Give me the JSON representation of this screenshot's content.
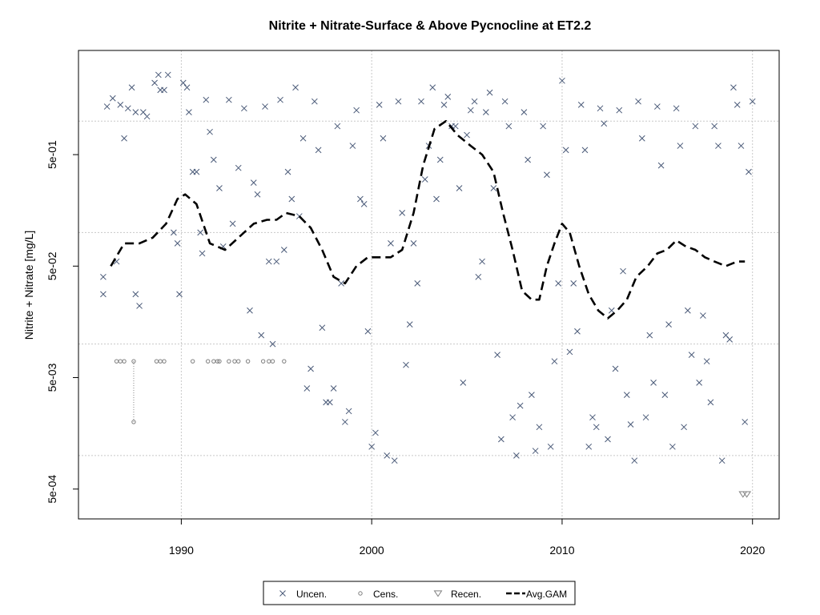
{
  "chart_data": {
    "type": "scatter",
    "title": "Nitrite + Nitrate-Surface & Above Pycnocline at ET2.2",
    "xlabel": "",
    "ylabel": "Nitrite + Nitrate [mg/L]",
    "x_scale": "linear",
    "y_scale": "log",
    "xlim": [
      1984.6,
      2021.4
    ],
    "ylim": [
      0.00027,
      4.3
    ],
    "x_ticks": [
      1990,
      2000,
      2010,
      2020
    ],
    "x_tick_labels": [
      "1990",
      "2000",
      "2010",
      "2020"
    ],
    "y_ticks": [
      0.0005,
      0.005,
      0.05,
      0.5
    ],
    "y_tick_labels": [
      "5e-04",
      "5e-03",
      "5e-02",
      "5e-01"
    ],
    "y_gridlines": [
      0.001,
      0.01,
      0.1,
      1
    ],
    "x_gridlines": [
      1990,
      2000,
      2010,
      2020
    ],
    "grid": true,
    "legend_position": "bottom-center",
    "legend": [
      "Uncen.",
      "Cens.",
      "Recen.",
      "Avg.GAM"
    ],
    "colors": {
      "uncensored": "#4a5a78",
      "censored": "#7f7f7f",
      "recensored": "#7f7f7f",
      "gam": "#000000",
      "grid": "#c8c8c8"
    },
    "series": [
      {
        "name": "Uncen.",
        "marker": "x",
        "points": [
          [
            1985.9,
            0.04
          ],
          [
            1985.9,
            0.028
          ],
          [
            1986.1,
            1.35
          ],
          [
            1986.4,
            1.6
          ],
          [
            1986.6,
            0.055
          ],
          [
            1986.8,
            1.4
          ],
          [
            1987.0,
            0.7
          ],
          [
            1987.2,
            1.3
          ],
          [
            1987.4,
            2.0
          ],
          [
            1987.6,
            1.2
          ],
          [
            1987.6,
            0.028
          ],
          [
            1987.8,
            0.022
          ],
          [
            1988.0,
            1.2
          ],
          [
            1988.2,
            1.1
          ],
          [
            1988.6,
            2.2
          ],
          [
            1988.8,
            2.6
          ],
          [
            1988.9,
            1.9
          ],
          [
            1989.1,
            1.9
          ],
          [
            1989.3,
            2.6
          ],
          [
            1989.6,
            0.1
          ],
          [
            1989.8,
            0.08
          ],
          [
            1989.9,
            0.028
          ],
          [
            1990.1,
            2.2
          ],
          [
            1990.3,
            2.0
          ],
          [
            1990.4,
            1.2
          ],
          [
            1990.6,
            0.35
          ],
          [
            1990.8,
            0.35
          ],
          [
            1991.0,
            0.1
          ],
          [
            1991.1,
            0.065
          ],
          [
            1991.3,
            1.55
          ],
          [
            1991.5,
            0.8
          ],
          [
            1991.7,
            0.45
          ],
          [
            1992.0,
            0.25
          ],
          [
            1992.2,
            0.075
          ],
          [
            1992.5,
            1.55
          ],
          [
            1992.7,
            0.12
          ],
          [
            1993.0,
            0.38
          ],
          [
            1993.3,
            1.3
          ],
          [
            1993.6,
            0.02
          ],
          [
            1993.8,
            0.28
          ],
          [
            1994.0,
            0.22
          ],
          [
            1994.2,
            0.012
          ],
          [
            1994.4,
            1.35
          ],
          [
            1994.6,
            0.055
          ],
          [
            1994.8,
            0.01
          ],
          [
            1995.0,
            0.055
          ],
          [
            1995.2,
            1.55
          ],
          [
            1995.4,
            0.07
          ],
          [
            1995.6,
            0.35
          ],
          [
            1995.8,
            0.2
          ],
          [
            1996.0,
            2.0
          ],
          [
            1996.2,
            0.14
          ],
          [
            1996.4,
            0.7
          ],
          [
            1996.6,
            0.004
          ],
          [
            1996.8,
            0.006
          ],
          [
            1997.0,
            1.5
          ],
          [
            1997.2,
            0.55
          ],
          [
            1997.4,
            0.014
          ],
          [
            1997.6,
            0.003
          ],
          [
            1997.8,
            0.003
          ],
          [
            1998.0,
            0.004
          ],
          [
            1998.2,
            0.9
          ],
          [
            1998.4,
            0.035
          ],
          [
            1998.6,
            0.002
          ],
          [
            1998.8,
            0.0025
          ],
          [
            1999.0,
            0.6
          ],
          [
            1999.2,
            1.25
          ],
          [
            1999.4,
            0.2
          ],
          [
            1999.6,
            0.18
          ],
          [
            1999.8,
            0.013
          ],
          [
            2000.0,
            0.0012
          ],
          [
            2000.2,
            0.0016
          ],
          [
            2000.4,
            1.4
          ],
          [
            2000.6,
            0.7
          ],
          [
            2000.8,
            0.001
          ],
          [
            2001.0,
            0.08
          ],
          [
            2001.2,
            0.0009
          ],
          [
            2001.4,
            1.5
          ],
          [
            2001.6,
            0.15
          ],
          [
            2001.8,
            0.0065
          ],
          [
            2002.0,
            0.015
          ],
          [
            2002.2,
            0.08
          ],
          [
            2002.4,
            0.035
          ],
          [
            2002.6,
            1.5
          ],
          [
            2002.8,
            0.3
          ],
          [
            2003.0,
            0.6
          ],
          [
            2003.2,
            2.0
          ],
          [
            2003.4,
            0.2
          ],
          [
            2003.6,
            0.45
          ],
          [
            2003.8,
            1.4
          ],
          [
            2004.0,
            1.65
          ],
          [
            2004.2,
            0.9
          ],
          [
            2004.4,
            0.9
          ],
          [
            2004.6,
            0.25
          ],
          [
            2004.8,
            0.0045
          ],
          [
            2005.0,
            0.75
          ],
          [
            2005.2,
            1.25
          ],
          [
            2005.4,
            1.5
          ],
          [
            2005.6,
            0.04
          ],
          [
            2005.8,
            0.055
          ],
          [
            2006.0,
            1.2
          ],
          [
            2006.2,
            1.8
          ],
          [
            2006.4,
            0.25
          ],
          [
            2006.6,
            0.008
          ],
          [
            2006.8,
            0.0014
          ],
          [
            2007.0,
            1.5
          ],
          [
            2007.2,
            0.9
          ],
          [
            2007.4,
            0.0022
          ],
          [
            2007.6,
            0.001
          ],
          [
            2007.8,
            0.0028
          ],
          [
            2008.0,
            1.2
          ],
          [
            2008.2,
            0.45
          ],
          [
            2008.4,
            0.0035
          ],
          [
            2008.6,
            0.0011
          ],
          [
            2008.8,
            0.0018
          ],
          [
            2009.0,
            0.9
          ],
          [
            2009.2,
            0.33
          ],
          [
            2009.4,
            0.0012
          ],
          [
            2009.6,
            0.007
          ],
          [
            2009.8,
            0.035
          ],
          [
            2010.0,
            2.3
          ],
          [
            2010.2,
            0.55
          ],
          [
            2010.4,
            0.0085
          ],
          [
            2010.6,
            0.035
          ],
          [
            2010.8,
            0.013
          ],
          [
            2011.0,
            1.4
          ],
          [
            2011.2,
            0.55
          ],
          [
            2011.4,
            0.0012
          ],
          [
            2011.6,
            0.0022
          ],
          [
            2011.8,
            0.0018
          ],
          [
            2012.0,
            1.3
          ],
          [
            2012.2,
            0.95
          ],
          [
            2012.4,
            0.0014
          ],
          [
            2012.6,
            0.02
          ],
          [
            2012.8,
            0.006
          ],
          [
            2013.0,
            1.25
          ],
          [
            2013.2,
            0.045
          ],
          [
            2013.4,
            0.0035
          ],
          [
            2013.6,
            0.0019
          ],
          [
            2013.8,
            0.0009
          ],
          [
            2014.0,
            1.5
          ],
          [
            2014.2,
            0.7
          ],
          [
            2014.4,
            0.0022
          ],
          [
            2014.6,
            0.012
          ],
          [
            2014.8,
            0.0045
          ],
          [
            2015.0,
            1.35
          ],
          [
            2015.2,
            0.4
          ],
          [
            2015.4,
            0.0035
          ],
          [
            2015.6,
            0.015
          ],
          [
            2015.8,
            0.0012
          ],
          [
            2016.0,
            1.3
          ],
          [
            2016.2,
            0.6
          ],
          [
            2016.4,
            0.0018
          ],
          [
            2016.6,
            0.02
          ],
          [
            2016.8,
            0.008
          ],
          [
            2017.0,
            0.9
          ],
          [
            2017.2,
            0.0045
          ],
          [
            2017.4,
            0.018
          ],
          [
            2017.6,
            0.007
          ],
          [
            2017.8,
            0.003
          ],
          [
            2018.0,
            0.9
          ],
          [
            2018.2,
            0.6
          ],
          [
            2018.4,
            0.0009
          ],
          [
            2018.6,
            0.012
          ],
          [
            2018.8,
            0.011
          ],
          [
            2019.0,
            2.0
          ],
          [
            2019.2,
            1.4
          ],
          [
            2019.4,
            0.6
          ],
          [
            2019.6,
            0.002
          ],
          [
            2019.8,
            0.35
          ],
          [
            2020.0,
            1.5
          ]
        ]
      },
      {
        "name": "Cens.",
        "marker": "circle",
        "points": [
          [
            1986.6,
            0.007
          ],
          [
            1986.8,
            0.007
          ],
          [
            1987.0,
            0.007
          ],
          [
            1987.5,
            0.007
          ],
          [
            1987.5,
            0.002
          ],
          [
            1988.7,
            0.007
          ],
          [
            1988.9,
            0.007
          ],
          [
            1989.1,
            0.007
          ],
          [
            1990.6,
            0.007
          ],
          [
            1991.4,
            0.007
          ],
          [
            1991.7,
            0.007
          ],
          [
            1991.9,
            0.007
          ],
          [
            1992.0,
            0.007
          ],
          [
            1992.5,
            0.007
          ],
          [
            1992.8,
            0.007
          ],
          [
            1993.0,
            0.007
          ],
          [
            1993.5,
            0.007
          ],
          [
            1994.3,
            0.007
          ],
          [
            1994.6,
            0.007
          ],
          [
            1994.8,
            0.007
          ],
          [
            1995.4,
            0.007
          ]
        ]
      },
      {
        "name": "Recen.",
        "marker": "triangle-down",
        "points": [
          [
            2019.5,
            0.00045
          ],
          [
            2019.7,
            0.00045
          ]
        ]
      },
      {
        "name": "Avg.GAM",
        "marker": "dashed-line",
        "points": [
          [
            1986.3,
            0.05
          ],
          [
            1987.0,
            0.08
          ],
          [
            1987.8,
            0.08
          ],
          [
            1988.5,
            0.09
          ],
          [
            1989.2,
            0.12
          ],
          [
            1989.8,
            0.2
          ],
          [
            1990.2,
            0.22
          ],
          [
            1990.8,
            0.18
          ],
          [
            1991.5,
            0.08
          ],
          [
            1992.3,
            0.07
          ],
          [
            1993.0,
            0.09
          ],
          [
            1993.8,
            0.12
          ],
          [
            1994.5,
            0.13
          ],
          [
            1995.0,
            0.13
          ],
          [
            1995.5,
            0.15
          ],
          [
            1996.2,
            0.14
          ],
          [
            1996.8,
            0.11
          ],
          [
            1997.4,
            0.07
          ],
          [
            1998.0,
            0.04
          ],
          [
            1998.6,
            0.035
          ],
          [
            1999.2,
            0.05
          ],
          [
            1999.8,
            0.06
          ],
          [
            2000.4,
            0.06
          ],
          [
            2001.0,
            0.06
          ],
          [
            2001.6,
            0.07
          ],
          [
            2002.2,
            0.15
          ],
          [
            2002.7,
            0.4
          ],
          [
            2003.3,
            0.85
          ],
          [
            2003.9,
            1.0
          ],
          [
            2004.5,
            0.75
          ],
          [
            2005.2,
            0.6
          ],
          [
            2005.8,
            0.5
          ],
          [
            2006.4,
            0.35
          ],
          [
            2006.9,
            0.15
          ],
          [
            2007.4,
            0.07
          ],
          [
            2007.9,
            0.03
          ],
          [
            2008.4,
            0.025
          ],
          [
            2008.8,
            0.025
          ],
          [
            2009.2,
            0.05
          ],
          [
            2009.6,
            0.08
          ],
          [
            2010.0,
            0.12
          ],
          [
            2010.4,
            0.1
          ],
          [
            2010.9,
            0.05
          ],
          [
            2011.4,
            0.028
          ],
          [
            2011.9,
            0.02
          ],
          [
            2012.4,
            0.017
          ],
          [
            2012.9,
            0.02
          ],
          [
            2013.4,
            0.025
          ],
          [
            2013.9,
            0.04
          ],
          [
            2014.5,
            0.05
          ],
          [
            2015.0,
            0.065
          ],
          [
            2015.5,
            0.07
          ],
          [
            2016.0,
            0.085
          ],
          [
            2016.5,
            0.075
          ],
          [
            2017.0,
            0.07
          ],
          [
            2017.5,
            0.06
          ],
          [
            2018.0,
            0.055
          ],
          [
            2018.6,
            0.05
          ],
          [
            2019.2,
            0.055
          ],
          [
            2019.6,
            0.055
          ]
        ]
      }
    ]
  }
}
